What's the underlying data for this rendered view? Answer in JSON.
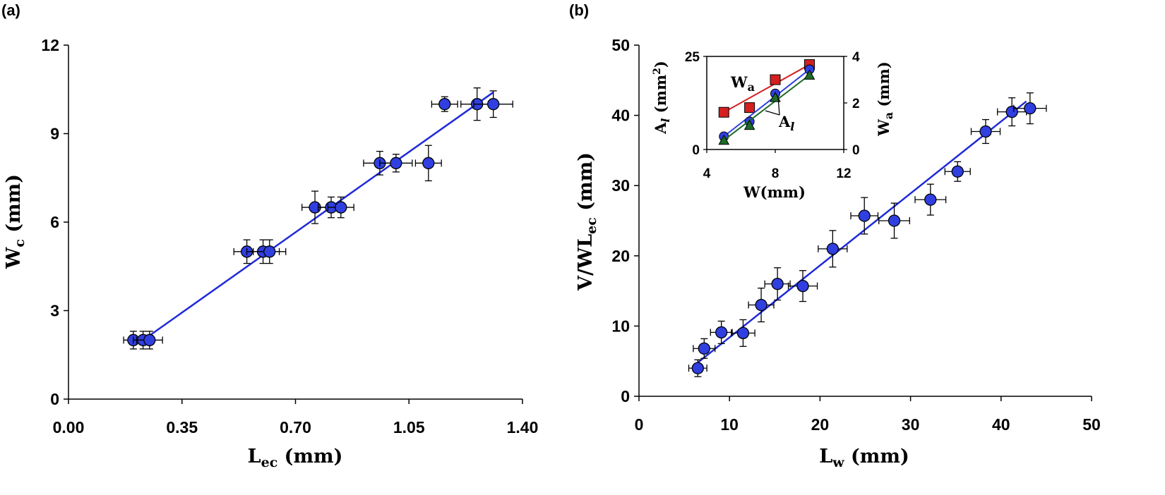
{
  "chart_data": [
    {
      "panel": "(a)",
      "type": "scatter",
      "xlabel": "L",
      "xlabel_sub": "ec",
      "xlabel_unit": " (mm)",
      "ylabel": "W",
      "ylabel_sub": "c",
      "ylabel_unit": " (mm)",
      "xlim": [
        0,
        1.4
      ],
      "ylim": [
        0,
        12
      ],
      "xticks": [
        "0.00",
        "0.35",
        "0.70",
        "1.05",
        "1.40"
      ],
      "yticks": [
        "0",
        "3",
        "6",
        "9",
        "12"
      ],
      "xtick_values": [
        0,
        0.35,
        0.7,
        1.05,
        1.4
      ],
      "ytick_values": [
        0,
        3,
        6,
        9,
        12
      ],
      "grid": false,
      "points": [
        {
          "x": 0.2,
          "y": 2.0,
          "xerr": 0.03,
          "yerr": 0.3
        },
        {
          "x": 0.23,
          "y": 2.0,
          "xerr": 0.03,
          "yerr": 0.3
        },
        {
          "x": 0.25,
          "y": 2.0,
          "xerr": 0.04,
          "yerr": 0.3
        },
        {
          "x": 0.55,
          "y": 5.0,
          "xerr": 0.04,
          "yerr": 0.4
        },
        {
          "x": 0.6,
          "y": 5.0,
          "xerr": 0.05,
          "yerr": 0.4
        },
        {
          "x": 0.62,
          "y": 5.0,
          "xerr": 0.05,
          "yerr": 0.4
        },
        {
          "x": 0.76,
          "y": 6.5,
          "xerr": 0.04,
          "yerr": 0.55
        },
        {
          "x": 0.81,
          "y": 6.5,
          "xerr": 0.04,
          "yerr": 0.35
        },
        {
          "x": 0.84,
          "y": 6.5,
          "xerr": 0.04,
          "yerr": 0.35
        },
        {
          "x": 0.96,
          "y": 8.0,
          "xerr": 0.05,
          "yerr": 0.4
        },
        {
          "x": 1.01,
          "y": 8.0,
          "xerr": 0.05,
          "yerr": 0.3
        },
        {
          "x": 1.11,
          "y": 8.0,
          "xerr": 0.04,
          "yerr": 0.6
        },
        {
          "x": 1.16,
          "y": 10.0,
          "xerr": 0.04,
          "yerr": 0.25
        },
        {
          "x": 1.26,
          "y": 10.0,
          "xerr": 0.05,
          "yerr": 0.55
        },
        {
          "x": 1.31,
          "y": 10.0,
          "xerr": 0.06,
          "yerr": 0.45
        }
      ],
      "fit_line": [
        {
          "x": 0.23,
          "y": 2.0
        },
        {
          "x": 1.31,
          "y": 10.4
        }
      ],
      "marker_color": "#2f3fe0",
      "line_color": "#1f2ad8"
    },
    {
      "panel": "(b)",
      "type": "scatter",
      "xlabel": "L",
      "xlabel_sub": "w",
      "xlabel_unit": " (mm)",
      "ylabel": "V/WL",
      "ylabel_sub": "ec",
      "ylabel_unit": " (mm)",
      "xlim": [
        0,
        50
      ],
      "ylim": [
        0,
        50
      ],
      "xticks": [
        "0",
        "10",
        "20",
        "30",
        "40",
        "50"
      ],
      "yticks": [
        "0",
        "10",
        "20",
        "30",
        "40",
        "50"
      ],
      "xtick_values": [
        0,
        10,
        20,
        30,
        40,
        50
      ],
      "ytick_values": [
        0,
        10,
        20,
        30,
        40,
        50
      ],
      "grid": false,
      "points": [
        {
          "x": 6.5,
          "y": 4.0,
          "xerr": 1.0,
          "yerr": 1.2
        },
        {
          "x": 7.2,
          "y": 6.8,
          "xerr": 1.2,
          "yerr": 1.4
        },
        {
          "x": 9.1,
          "y": 9.1,
          "xerr": 1.2,
          "yerr": 1.6
        },
        {
          "x": 11.5,
          "y": 9.0,
          "xerr": 1.3,
          "yerr": 1.9
        },
        {
          "x": 13.5,
          "y": 13.0,
          "xerr": 1.4,
          "yerr": 2.4
        },
        {
          "x": 15.3,
          "y": 16.0,
          "xerr": 1.4,
          "yerr": 2.3
        },
        {
          "x": 18.1,
          "y": 15.7,
          "xerr": 1.6,
          "yerr": 2.2
        },
        {
          "x": 21.4,
          "y": 21.0,
          "xerr": 1.6,
          "yerr": 2.6
        },
        {
          "x": 24.9,
          "y": 25.7,
          "xerr": 1.5,
          "yerr": 2.6
        },
        {
          "x": 28.2,
          "y": 25.0,
          "xerr": 1.7,
          "yerr": 2.5
        },
        {
          "x": 32.2,
          "y": 28.0,
          "xerr": 1.7,
          "yerr": 2.2
        },
        {
          "x": 35.2,
          "y": 32.0,
          "xerr": 1.4,
          "yerr": 1.4
        },
        {
          "x": 38.3,
          "y": 37.7,
          "xerr": 1.6,
          "yerr": 1.7
        },
        {
          "x": 41.2,
          "y": 40.5,
          "xerr": 1.6,
          "yerr": 2.0
        },
        {
          "x": 43.2,
          "y": 41.0,
          "xerr": 1.8,
          "yerr": 2.2
        }
      ],
      "fit_line": [
        {
          "x": 6.5,
          "y": 4.8
        },
        {
          "x": 42.8,
          "y": 42.0
        }
      ],
      "marker_color": "#2f3fe0",
      "line_color": "#1f2ad8",
      "inset": {
        "xlabel": "W(mm)",
        "ylabel_left": "A",
        "ylabel_left_sub": "l",
        "ylabel_left_unit": " (mm",
        "ylabel_left_sup": "2",
        "ylabel_left_close": ")",
        "ylabel_right": "W",
        "ylabel_right_sub": "a",
        "ylabel_right_unit": " (mm)",
        "xlim": [
          4,
          12
        ],
        "ylim_left": [
          0,
          25
        ],
        "ylim_right": [
          0,
          4
        ],
        "xticks": [
          "4",
          "8",
          "12"
        ],
        "yticks_left": [
          "0",
          "25"
        ],
        "yticks_right": [
          "0",
          "2",
          "4"
        ],
        "xtick_values": [
          4,
          8,
          12
        ],
        "ytick_left_values": [
          0,
          25
        ],
        "ytick_right_values": [
          0,
          2,
          4
        ],
        "annotation_wa": "W",
        "annotation_wa_sub": "a",
        "annotation_al": "A",
        "annotation_al_sub": "l",
        "series": [
          {
            "axis": "right",
            "marker": "square",
            "color": "#d42020",
            "points": [
              {
                "x": 5,
                "y": 1.6
              },
              {
                "x": 6.5,
                "y": 1.8
              },
              {
                "x": 8,
                "y": 3.0
              },
              {
                "x": 10,
                "y": 3.65
              }
            ]
          },
          {
            "axis": "left",
            "marker": "circle",
            "color": "#2f3fe0",
            "points": [
              {
                "x": 5,
                "y": 3.5
              },
              {
                "x": 6.5,
                "y": 7.5
              },
              {
                "x": 8,
                "y": 15.0
              },
              {
                "x": 10,
                "y": 21.5
              }
            ]
          },
          {
            "axis": "left",
            "marker": "triangle",
            "color": "#1c6b28",
            "points": [
              {
                "x": 5,
                "y": 2.5
              },
              {
                "x": 6.5,
                "y": 6.5
              },
              {
                "x": 8,
                "y": 14.0
              },
              {
                "x": 10,
                "y": 20.0
              }
            ]
          }
        ]
      }
    }
  ]
}
